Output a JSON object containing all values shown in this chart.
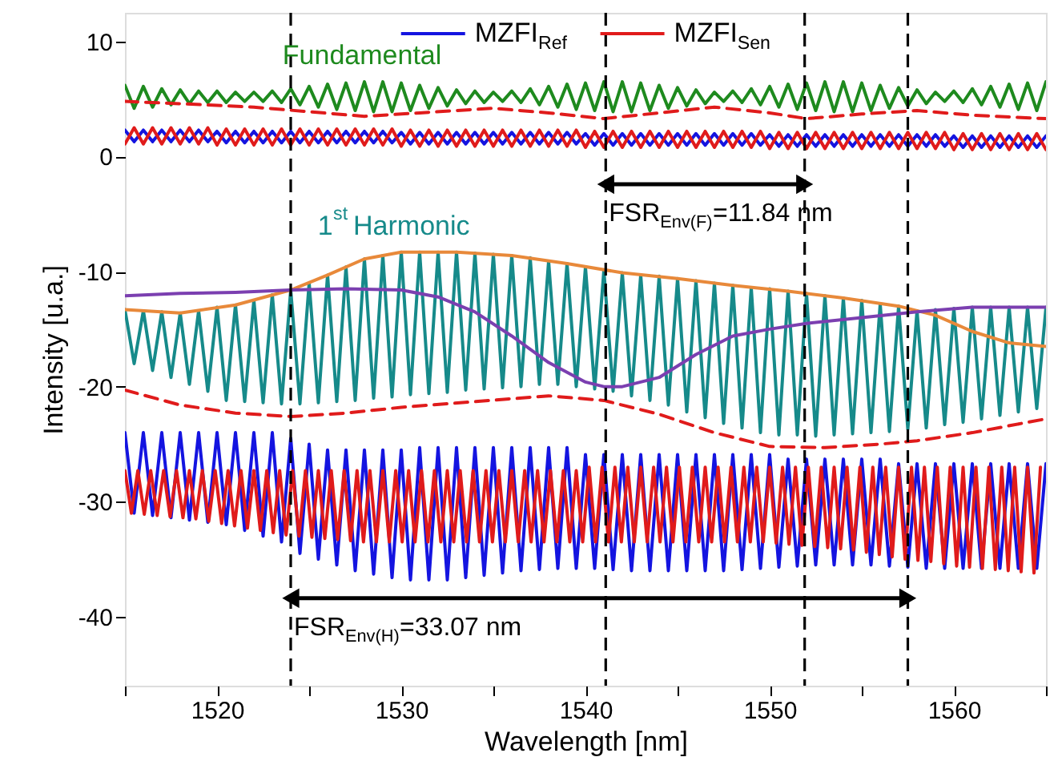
{
  "chart_data": {
    "type": "line",
    "xlabel": "Wavelength [nm]",
    "ylabel": "Intensity [u.a.]",
    "xlim": [
      1515,
      1565
    ],
    "ylim": [
      -46,
      12.5
    ],
    "xticks": [
      {
        "value": 1515,
        "label": null
      },
      1520,
      {
        "value": 1525,
        "label": null
      },
      1530,
      {
        "value": 1535,
        "label": null
      },
      1540,
      {
        "value": 1545,
        "label": null
      },
      1550,
      {
        "value": 1555,
        "label": null
      },
      1560,
      {
        "value": 1565,
        "label": null
      }
    ],
    "yticks": [
      -40,
      -30,
      -20,
      -10,
      0,
      10
    ],
    "legend": "top",
    "line_style": "solid",
    "x": [
      1515,
      1515.5,
      1516,
      1516.5,
      1517,
      1517.5,
      1518,
      1518.5,
      1519,
      1519.5,
      1520,
      1520.5,
      1521,
      1521.5,
      1522,
      1522.5,
      1523,
      1523.5,
      1524,
      1524.5,
      1525,
      1525.5,
      1526,
      1526.5,
      1527,
      1527.5,
      1528,
      1528.5,
      1529,
      1529.5,
      1530,
      1530.5,
      1531,
      1531.5,
      1532,
      1532.5,
      1533,
      1533.5,
      1534,
      1534.5,
      1535,
      1535.5,
      1536,
      1536.5,
      1537,
      1537.5,
      1538,
      1538.5,
      1539,
      1539.5,
      1540,
      1540.5,
      1541,
      1541.5,
      1542,
      1542.5,
      1543,
      1543.5,
      1544,
      1544.5,
      1545,
      1545.5,
      1546,
      1546.5,
      1547,
      1547.5,
      1548,
      1548.5,
      1549,
      1549.5,
      1550,
      1550.5,
      1551,
      1551.5,
      1552,
      1552.5,
      1553,
      1553.5,
      1554,
      1554.5,
      1555,
      1555.5,
      1556,
      1556.5,
      1557,
      1557.5,
      1558,
      1558.5,
      1559,
      1559.5,
      1560,
      1560.5,
      1561,
      1561.5,
      1562,
      1562.5,
      1563,
      1563.5,
      1564,
      1564.5,
      1565
    ],
    "series": [
      {
        "name": "Fundamental",
        "color": "#1e8a1e",
        "values": [
          6.2,
          4.2,
          6.1,
          4.3,
          5.9,
          4.5,
          5.8,
          4.6,
          5.7,
          4.7,
          5.7,
          4.7,
          5.6,
          4.8,
          5.6,
          4.8,
          5.7,
          4.7,
          5.9,
          4.5,
          6.1,
          4.3,
          6.3,
          4.1,
          6.4,
          4.0,
          6.5,
          3.9,
          6.5,
          3.9,
          6.4,
          4.0,
          6.2,
          4.2,
          6.0,
          4.4,
          5.8,
          4.6,
          5.7,
          4.7,
          5.6,
          4.8,
          5.7,
          4.7,
          5.9,
          4.5,
          6.1,
          4.3,
          6.3,
          4.1,
          6.4,
          4.0,
          6.5,
          3.9,
          6.5,
          3.9,
          6.4,
          4.0,
          6.2,
          4.2,
          6.0,
          4.4,
          5.8,
          4.6,
          5.6,
          4.8,
          5.7,
          4.7,
          5.9,
          4.5,
          6.1,
          4.3,
          6.3,
          4.1,
          6.4,
          4.0,
          6.5,
          3.9,
          6.5,
          3.9,
          6.4,
          4.0,
          6.2,
          4.2,
          6.0,
          4.4,
          5.8,
          4.6,
          5.6,
          4.8,
          5.7,
          4.7,
          5.9,
          4.5,
          6.1,
          4.3,
          6.3,
          4.1,
          6.4,
          4.0,
          6.5
        ]
      },
      {
        "color": "#e01b1b",
        "line_style": "dashed",
        "x": [
          1515,
          1518,
          1522,
          1525,
          1528,
          1531,
          1535,
          1538,
          1541,
          1544,
          1547,
          1550,
          1552,
          1555,
          1558,
          1561,
          1565
        ],
        "values": [
          4.8,
          4.6,
          4.3,
          3.9,
          3.5,
          3.8,
          4.2,
          3.8,
          3.3,
          3.8,
          4.3,
          3.8,
          3.3,
          3.7,
          4.0,
          3.6,
          3.3
        ]
      },
      {
        "color": "#1414e0",
        "values": [
          2.3,
          1.3,
          2.3,
          1.3,
          2.3,
          1.3,
          2.3,
          1.3,
          2.3,
          1.3,
          2.2,
          1.2,
          2.2,
          1.2,
          2.2,
          1.2,
          2.2,
          1.2,
          2.2,
          1.2,
          2.2,
          1.2,
          2.2,
          1.2,
          2.2,
          1.2,
          2.2,
          1.2,
          2.2,
          1.2,
          2.1,
          1.1,
          2.1,
          1.1,
          2.1,
          1.1,
          2.1,
          1.1,
          2.1,
          1.1,
          2.1,
          1.1,
          2.1,
          1.1,
          2.1,
          1.1,
          2.1,
          1.1,
          2.1,
          1.1,
          2.0,
          1.0,
          2.0,
          1.0,
          2.0,
          1.0,
          2.0,
          1.0,
          2.0,
          1.0,
          2.0,
          1.0,
          2.0,
          1.0,
          2.0,
          1.0,
          2.0,
          1.0,
          2.0,
          1.0,
          1.9,
          0.9,
          1.9,
          0.9,
          1.9,
          0.9,
          1.9,
          0.9,
          1.9,
          0.9,
          1.9,
          0.9,
          1.9,
          0.9,
          1.9,
          0.9,
          1.9,
          0.9,
          1.9,
          0.9,
          1.8,
          0.8,
          1.8,
          0.8,
          1.8,
          0.8,
          1.8,
          0.8,
          1.8,
          0.8,
          1.8
        ]
      },
      {
        "color": "#e01b1b",
        "values": [
          1.1,
          2.5,
          1.1,
          2.5,
          1.1,
          2.5,
          1.1,
          2.5,
          1.1,
          2.5,
          1.0,
          2.4,
          1.0,
          2.4,
          1.0,
          2.4,
          1.0,
          2.4,
          1.0,
          2.4,
          1.0,
          2.4,
          1.0,
          2.4,
          1.0,
          2.4,
          1.0,
          2.4,
          1.0,
          2.4,
          0.9,
          2.3,
          0.9,
          2.3,
          0.9,
          2.3,
          0.9,
          2.3,
          0.9,
          2.3,
          0.9,
          2.3,
          0.9,
          2.3,
          0.9,
          2.3,
          0.9,
          2.3,
          0.9,
          2.3,
          0.8,
          2.2,
          0.8,
          2.2,
          0.8,
          2.2,
          0.8,
          2.2,
          0.8,
          2.2,
          0.8,
          2.2,
          0.8,
          2.2,
          0.8,
          2.2,
          0.8,
          2.2,
          0.8,
          2.2,
          0.7,
          2.1,
          0.7,
          2.1,
          0.7,
          2.1,
          0.7,
          2.1,
          0.7,
          2.1,
          0.7,
          2.1,
          0.7,
          2.1,
          0.7,
          2.1,
          0.7,
          2.1,
          0.7,
          2.1,
          0.6,
          2.0,
          0.6,
          2.0,
          0.6,
          2.0,
          0.6,
          2.0,
          0.6,
          2.0,
          0.6
        ]
      },
      {
        "name": "1$^{st}$ Harmonic",
        "color": "#168a8a",
        "values": [
          -13.3,
          -18.0,
          -13.4,
          -18.6,
          -13.5,
          -19.2,
          -13.6,
          -19.8,
          -13.4,
          -20.4,
          -13.1,
          -21.2,
          -12.9,
          -21.3,
          -12.5,
          -21.4,
          -12.0,
          -21.5,
          -11.6,
          -21.5,
          -11.0,
          -21.4,
          -10.3,
          -21.3,
          -9.6,
          -21.2,
          -8.9,
          -21.0,
          -8.6,
          -20.9,
          -8.3,
          -20.7,
          -8.3,
          -20.6,
          -8.3,
          -20.5,
          -8.3,
          -20.3,
          -8.4,
          -20.2,
          -8.5,
          -20.1,
          -8.6,
          -20.0,
          -8.8,
          -19.8,
          -9.1,
          -19.8,
          -9.3,
          -20.0,
          -9.6,
          -20.2,
          -9.9,
          -20.4,
          -10.1,
          -20.8,
          -10.3,
          -21.2,
          -10.4,
          -21.6,
          -10.6,
          -22.2,
          -10.8,
          -22.7,
          -11.0,
          -23.2,
          -11.2,
          -23.6,
          -11.4,
          -24.0,
          -11.5,
          -24.2,
          -11.7,
          -24.2,
          -11.9,
          -24.3,
          -12.1,
          -24.2,
          -12.3,
          -24.1,
          -12.5,
          -24.0,
          -12.8,
          -23.9,
          -13.0,
          -23.7,
          -13.4,
          -23.6,
          -13.3,
          -23.3,
          -13.2,
          -23.1,
          -13.1,
          -22.8,
          -13.1,
          -22.5,
          -13.1,
          -22.2,
          -13.1,
          -21.9,
          -13.1
        ]
      },
      {
        "color": "#e8893a",
        "x": [
          1515,
          1518,
          1521,
          1524,
          1526,
          1528,
          1530,
          1533,
          1536,
          1539,
          1542,
          1545,
          1548,
          1551,
          1554,
          1557,
          1559,
          1561,
          1563,
          1565
        ],
        "values": [
          -13.3,
          -13.6,
          -12.9,
          -11.6,
          -10.3,
          -8.9,
          -8.3,
          -8.3,
          -8.6,
          -9.3,
          -10.1,
          -10.6,
          -11.2,
          -11.7,
          -12.3,
          -13.0,
          -13.8,
          -15.2,
          -16.2,
          -16.5
        ]
      },
      {
        "color": "#7b3fb0",
        "x": [
          1515,
          1518,
          1521,
          1524,
          1527,
          1530,
          1532,
          1534,
          1536,
          1538,
          1540,
          1541,
          1542,
          1544,
          1546,
          1548,
          1550,
          1552,
          1555,
          1558,
          1561,
          1565
        ],
        "values": [
          -12.1,
          -11.9,
          -11.8,
          -11.6,
          -11.5,
          -11.6,
          -12.2,
          -13.5,
          -15.6,
          -17.9,
          -19.6,
          -20.0,
          -20.0,
          -19.2,
          -17.2,
          -15.6,
          -15.0,
          -14.5,
          -14.0,
          -13.5,
          -13.1,
          -13.1
        ]
      },
      {
        "color": "#e01b1b",
        "line_style": "dashed",
        "x": [
          1515,
          1518,
          1521,
          1524,
          1527,
          1530,
          1534,
          1538,
          1541,
          1544,
          1547,
          1550,
          1553,
          1556,
          1558,
          1561,
          1565
        ],
        "values": [
          -20.3,
          -21.6,
          -22.3,
          -22.6,
          -22.3,
          -21.8,
          -21.3,
          -20.8,
          -21.2,
          -22.4,
          -24.0,
          -25.2,
          -25.3,
          -25.0,
          -24.7,
          -24.0,
          -22.8
        ]
      },
      {
        "name": "MZFI$_{Ref}$",
        "color": "#1414e0",
        "values": [
          -24.0,
          -31.0,
          -24.0,
          -31.2,
          -24.0,
          -31.4,
          -24.0,
          -31.6,
          -24.0,
          -31.8,
          -24.0,
          -32.0,
          -24.0,
          -32.5,
          -24.0,
          -33.0,
          -24.0,
          -33.5,
          -24.5,
          -34.5,
          -25.0,
          -35.0,
          -25.5,
          -35.5,
          -25.5,
          -36.0,
          -25.5,
          -36.3,
          -25.5,
          -36.6,
          -25.5,
          -36.8,
          -25.3,
          -36.8,
          -25.3,
          -36.8,
          -25.3,
          -36.6,
          -25.3,
          -36.4,
          -25.3,
          -36.2,
          -25.3,
          -36.0,
          -25.3,
          -35.9,
          -25.3,
          -35.8,
          -25.3,
          -35.8,
          -25.9,
          -35.8,
          -25.9,
          -35.9,
          -25.9,
          -36.0,
          -25.9,
          -36.0,
          -25.9,
          -36.0,
          -25.9,
          -36.0,
          -25.9,
          -36.0,
          -25.9,
          -36.0,
          -25.9,
          -35.9,
          -25.9,
          -35.8,
          -25.9,
          -35.7,
          -26.3,
          -35.6,
          -26.3,
          -35.5,
          -26.3,
          -35.5,
          -26.3,
          -35.5,
          -26.3,
          -35.5,
          -26.3,
          -35.6,
          -26.7,
          -35.7,
          -26.7,
          -35.8,
          -26.7,
          -35.8,
          -26.7,
          -35.8,
          -26.7,
          -35.8,
          -26.7,
          -35.8,
          -26.7,
          -35.8,
          -26.7,
          -35.8,
          -26.7
        ]
      },
      {
        "name": "MZFI$_{Sen}$",
        "color": "#e01b1b",
        "x": [
          1515,
          1515.35,
          1515.7,
          1516.05,
          1516.4,
          1516.75,
          1517.1,
          1517.45,
          1517.8,
          1518.15,
          1518.5,
          1518.85,
          1519.2,
          1519.55,
          1519.9,
          1520.25,
          1520.6,
          1520.95,
          1521.3,
          1521.65,
          1522,
          1522.35,
          1522.7,
          1523.05,
          1523.4,
          1523.75,
          1524.1,
          1524.45,
          1524.8,
          1525.15,
          1525.5,
          1525.85,
          1526.2,
          1526.55,
          1526.9,
          1527.25,
          1527.6,
          1527.95,
          1528.3,
          1528.65,
          1529,
          1529.35,
          1529.7,
          1530.05,
          1530.4,
          1530.75,
          1531.1,
          1531.45,
          1531.8,
          1532.15,
          1532.5,
          1532.85,
          1533.2,
          1533.55,
          1533.9,
          1534.25,
          1534.6,
          1534.95,
          1535.3,
          1535.65,
          1536,
          1536.35,
          1536.7,
          1537.05,
          1537.4,
          1537.75,
          1538.1,
          1538.45,
          1538.8,
          1539.15,
          1539.5,
          1539.85,
          1540.2,
          1540.55,
          1540.9,
          1541.25,
          1541.6,
          1541.95,
          1542.3,
          1542.65,
          1543,
          1543.35,
          1543.7,
          1544.05,
          1544.4,
          1544.75,
          1545.1,
          1545.45,
          1545.8,
          1546.15,
          1546.5,
          1546.85,
          1547.2,
          1547.55,
          1547.9,
          1548.25,
          1548.6,
          1548.95,
          1549.3,
          1549.65,
          1550,
          1550.35,
          1550.7,
          1551.05,
          1551.4,
          1551.75,
          1552.1,
          1552.45,
          1552.8,
          1553.15,
          1553.5,
          1553.85,
          1554.2,
          1554.55,
          1554.9,
          1555.25,
          1555.6,
          1555.95,
          1556.3,
          1556.65,
          1557,
          1557.35,
          1557.7,
          1558.05,
          1558.4,
          1558.75,
          1559.1,
          1559.45,
          1559.8,
          1560.15,
          1560.5,
          1560.85,
          1561.2,
          1561.55,
          1561.9,
          1562.25,
          1562.6,
          1562.95,
          1563.3,
          1563.65,
          1564,
          1564.35,
          1564.7
        ],
        "values": [
          -27.3,
          -31.0,
          -27.3,
          -31.1,
          -27.3,
          -31.2,
          -27.3,
          -31.3,
          -27.3,
          -31.4,
          -27.3,
          -31.5,
          -27.3,
          -31.7,
          -27.3,
          -31.9,
          -27.3,
          -32.1,
          -27.3,
          -32.3,
          -27.3,
          -32.5,
          -27.3,
          -32.7,
          -27.3,
          -32.9,
          -27.3,
          -33.0,
          -27.3,
          -33.1,
          -27.3,
          -33.2,
          -27.3,
          -33.3,
          -27.3,
          -33.4,
          -27.3,
          -33.5,
          -27.3,
          -33.5,
          -27.3,
          -33.5,
          -27.3,
          -33.5,
          -27.3,
          -33.5,
          -27.3,
          -33.5,
          -27.3,
          -33.5,
          -27.3,
          -33.5,
          -27.3,
          -33.5,
          -27.3,
          -33.5,
          -27.3,
          -33.5,
          -27.3,
          -33.5,
          -27.3,
          -33.5,
          -27.3,
          -33.5,
          -27.3,
          -33.5,
          -27.3,
          -33.5,
          -27.3,
          -33.5,
          -27.3,
          -33.5,
          -27.0,
          -33.5,
          -27.0,
          -33.5,
          -27.0,
          -33.5,
          -27.0,
          -33.5,
          -27.0,
          -33.5,
          -27.0,
          -33.5,
          -27.0,
          -33.5,
          -27.0,
          -33.5,
          -27.0,
          -33.5,
          -27.0,
          -33.5,
          -27.0,
          -33.5,
          -27.0,
          -33.5,
          -27.0,
          -33.5,
          -27.0,
          -33.5,
          -27.0,
          -33.6,
          -27.0,
          -33.7,
          -27.0,
          -33.8,
          -27.0,
          -33.9,
          -27.0,
          -34.0,
          -27.0,
          -34.1,
          -27.0,
          -34.2,
          -27.0,
          -34.4,
          -27.0,
          -34.6,
          -27.0,
          -34.8,
          -27.0,
          -35.0,
          -27.0,
          -35.1,
          -27.0,
          -35.2,
          -27.0,
          -35.4,
          -27.0,
          -35.6,
          -27.0,
          -35.7,
          -27.0,
          -35.8,
          -27.0,
          -35.9,
          -27.0,
          -36.0,
          -27.0,
          -36.1,
          -27.0,
          -36.2,
          -27.0
        ]
      }
    ],
    "ref_lines": [
      {
        "axis": "x",
        "value": 1541.1,
        "color": "#000000",
        "line_style": "dashed"
      },
      {
        "axis": "x",
        "value": 1551.9,
        "color": "#000000",
        "line_style": "dashed"
      },
      {
        "axis": "x",
        "value": 1524.0,
        "color": "#000000",
        "line_style": "dashed"
      },
      {
        "axis": "x",
        "value": 1557.5,
        "color": "#000000",
        "line_style": "dashed"
      }
    ],
    "annotations": [
      {
        "text": "FSR$_{Env(F)}$=11.84 nm",
        "x": 1541.1,
        "y": -2.4
      },
      {
        "text": "FSR$_{Env(H)}$=33.07 nm",
        "x": 1524.0,
        "y": -38.4
      }
    ]
  }
}
